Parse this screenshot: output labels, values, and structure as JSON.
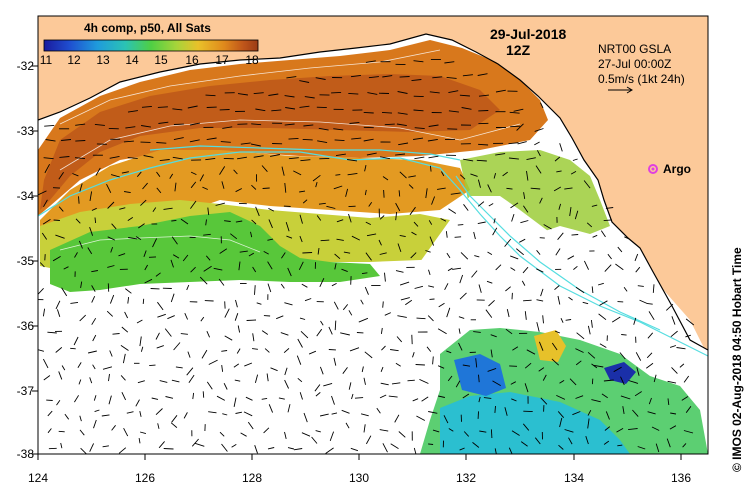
{
  "colorbar": {
    "title": "4h comp, p50, All Sats",
    "ticks": [
      "11",
      "12",
      "13",
      "14",
      "15",
      "16",
      "17",
      "18"
    ],
    "colors": [
      "#1a1a9e",
      "#1f4fd0",
      "#1f9bdc",
      "#2bc3b4",
      "#4fcf44",
      "#a7d43a",
      "#e9c12a",
      "#e08a1c",
      "#c0561a",
      "#9b3b16"
    ]
  },
  "header": {
    "date": "29-Jul-2018",
    "hour": "12Z"
  },
  "info": {
    "line1": "NRT00 GSLA",
    "line2": "27-Jul 00:00Z",
    "line3": "0.5m/s (1kt 24h)"
  },
  "argo": {
    "label": "Argo",
    "color": "#e040e0"
  },
  "axes": {
    "ylabels": [
      "-32",
      "-33",
      "-34",
      "-35",
      "-36",
      "-37",
      "-38"
    ],
    "xlabels": [
      "124",
      "126",
      "128",
      "130",
      "132",
      "134",
      "136"
    ]
  },
  "credit": "© IMOS 02-Aug-2018 04:50 Hobart Time",
  "colors": {
    "land": "#fcc999",
    "ocean_blank": "#ffffff",
    "contour": "#55dde0",
    "coast": "#000000"
  }
}
